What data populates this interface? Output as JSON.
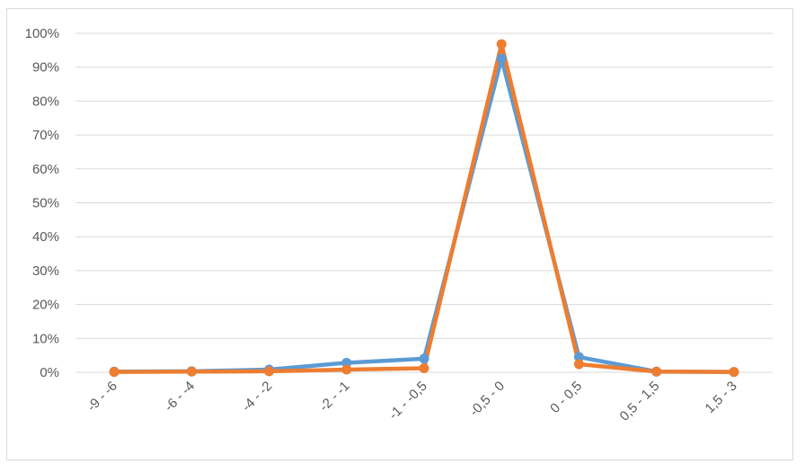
{
  "chart_data": {
    "type": "line",
    "title": "",
    "xlabel": "",
    "ylabel": "",
    "categories": [
      "-9 - -6",
      "-6 - -4",
      "-4 - -2",
      "-2 - -1",
      "-1 - -0,5",
      "-0,5 - 0",
      "0 - 0,5",
      "0,5 - 1,5",
      "1,5 - 3"
    ],
    "y_ticks": [
      "0%",
      "10%",
      "20%",
      "30%",
      "40%",
      "50%",
      "60%",
      "70%",
      "80%",
      "90%",
      "100%"
    ],
    "ylim": [
      0,
      100
    ],
    "grid": true,
    "legend": "none",
    "series": [
      {
        "color": "#5b9bd5",
        "values": [
          0.2,
          0.3,
          0.8,
          2.8,
          4.0,
          92.5,
          4.5,
          0.2,
          0.1
        ]
      },
      {
        "color": "#ed7d31",
        "values": [
          0.1,
          0.2,
          0.3,
          0.8,
          1.2,
          96.8,
          2.4,
          0.2,
          0.1
        ]
      }
    ]
  }
}
